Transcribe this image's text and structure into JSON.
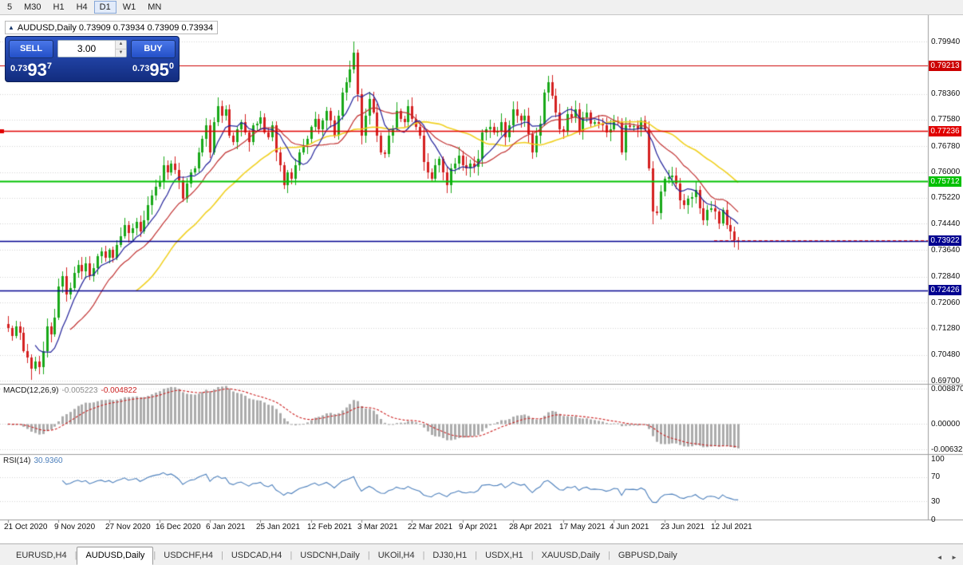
{
  "toolbar": {
    "timeframes": [
      "5",
      "M30",
      "H1",
      "H4",
      "D1",
      "W1",
      "MN"
    ],
    "active": "D1"
  },
  "chart_header": {
    "collapse_icon": "▲",
    "text": "AUDUSD,Daily 0.73909 0.73934 0.73909 0.73934"
  },
  "trade_panel": {
    "sell_label": "SELL",
    "buy_label": "BUY",
    "volume": "3.00",
    "spin_up_icon": "▲",
    "spin_down_icon": "▼",
    "sell_price": {
      "prefix": "0.73",
      "main": "93",
      "sup": "7"
    },
    "buy_price": {
      "prefix": "0.73",
      "main": "95",
      "sup": "0"
    }
  },
  "chart_data": {
    "type": "candlestick",
    "symbol": "AUDUSD",
    "timeframe": "Daily",
    "first_open": 0.714,
    "closes": [
      0.7128,
      0.7105,
      0.7133,
      0.7115,
      0.706,
      0.704,
      0.7005,
      0.7028,
      0.701,
      0.706,
      0.7135,
      0.711,
      0.716,
      0.7255,
      0.7285,
      0.723,
      0.725,
      0.7295,
      0.732,
      0.73,
      0.7325,
      0.7285,
      0.731,
      0.7345,
      0.736,
      0.734,
      0.7365,
      0.734,
      0.738,
      0.7405,
      0.744,
      0.7415,
      0.743,
      0.745,
      0.742,
      0.7455,
      0.75,
      0.753,
      0.7555,
      0.757,
      0.762,
      0.76,
      0.7625,
      0.7605,
      0.7575,
      0.752,
      0.7565,
      0.76,
      0.761,
      0.766,
      0.77,
      0.774,
      0.766,
      0.775,
      0.78,
      0.777,
      0.779,
      0.771,
      0.769,
      0.773,
      0.775,
      0.772,
      0.769,
      0.774,
      0.7745,
      0.7765,
      0.772,
      0.7705,
      0.774,
      0.766,
      0.762,
      0.756,
      0.76,
      0.758,
      0.762,
      0.766,
      0.768,
      0.77,
      0.7735,
      0.776,
      0.773,
      0.7755,
      0.7785,
      0.7755,
      0.771,
      0.777,
      0.784,
      0.787,
      0.791,
      0.796,
      0.7835,
      0.771,
      0.777,
      0.782,
      0.778,
      0.771,
      0.766,
      0.7655,
      0.771,
      0.773,
      0.7785,
      0.776,
      0.775,
      0.78,
      0.776,
      0.7735,
      0.771,
      0.763,
      0.76,
      0.758,
      0.762,
      0.764,
      0.76,
      0.756,
      0.761,
      0.7625,
      0.765,
      0.762,
      0.761,
      0.7625,
      0.7615,
      0.764,
      0.772,
      0.773,
      0.7735,
      0.772,
      0.7725,
      0.775,
      0.7705,
      0.774,
      0.779,
      0.777,
      0.7755,
      0.777,
      0.7715,
      0.766,
      0.771,
      0.7745,
      0.784,
      0.787,
      0.783,
      0.778,
      0.773,
      0.7725,
      0.7775,
      0.7765,
      0.779,
      0.7725,
      0.7765,
      0.778,
      0.7745,
      0.775,
      0.7745,
      0.774,
      0.772,
      0.773,
      0.7755,
      0.775,
      0.766,
      0.774,
      0.7735,
      0.7738,
      0.773,
      0.7755,
      0.773,
      0.761,
      0.748,
      0.7475,
      0.754,
      0.758,
      0.7585,
      0.759,
      0.7565,
      0.7515,
      0.75,
      0.752,
      0.7525,
      0.7545,
      0.749,
      0.7455,
      0.7485,
      0.749,
      0.748,
      0.7445,
      0.7485,
      0.744,
      0.742,
      0.7395,
      0.7393
    ],
    "wick_overrides": {
      "6": {
        "low": 0.6972
      },
      "8": {
        "low": 0.699
      },
      "89": {
        "high": 0.7995
      },
      "139": {
        "high": 0.7891
      },
      "166": {
        "low": 0.7443
      }
    },
    "horizontal_lines": [
      {
        "price": 0.79213,
        "label": "0.79213",
        "color": "#cc0000",
        "width": 1.2
      },
      {
        "price": 0.77236,
        "label": "0.77236",
        "color": "#e00000",
        "width": 1.6
      },
      {
        "price": 0.75712,
        "label": "0.75712",
        "color": "#00c000",
        "width": 1.8
      },
      {
        "price": 0.73922,
        "label": "0.73922",
        "color": "#000090",
        "width": 1.6
      },
      {
        "price": 0.72426,
        "label": "0.72426",
        "color": "#000090",
        "width": 1.6
      }
    ],
    "ask_price": 0.7395,
    "date_labels": [
      {
        "text": "21 Oct 2020",
        "bar": 0
      },
      {
        "text": "9 Nov 2020",
        "bar": 13
      },
      {
        "text": "27 Nov 2020",
        "bar": 26
      },
      {
        "text": "16 Dec 2020",
        "bar": 39
      },
      {
        "text": "6 Jan 2021",
        "bar": 52
      },
      {
        "text": "25 Jan 2021",
        "bar": 65
      },
      {
        "text": "12 Feb 2021",
        "bar": 78
      },
      {
        "text": "3 Mar 2021",
        "bar": 91
      },
      {
        "text": "22 Mar 2021",
        "bar": 104
      },
      {
        "text": "9 Apr 2021",
        "bar": 117
      },
      {
        "text": "28 Apr 2021",
        "bar": 130
      },
      {
        "text": "17 May 2021",
        "bar": 143
      },
      {
        "text": "4 Jun 2021",
        "bar": 156
      },
      {
        "text": "23 Jun 2021",
        "bar": 169
      },
      {
        "text": "12 Jul 2021",
        "bar": 182
      }
    ]
  },
  "price_axis": {
    "labels": [
      {
        "text": "0.79940",
        "value": 0.7994
      },
      {
        "text": "0.78360",
        "value": 0.7836
      },
      {
        "text": "0.77580",
        "value": 0.7758
      },
      {
        "text": "0.76780",
        "value": 0.7678
      },
      {
        "text": "0.76000",
        "value": 0.76
      },
      {
        "text": "0.75220",
        "value": 0.7522
      },
      {
        "text": "0.74440",
        "value": 0.7444
      },
      {
        "text": "0.73640",
        "value": 0.7364
      },
      {
        "text": "0.72840",
        "value": 0.7284
      },
      {
        "text": "0.72060",
        "value": 0.7206
      },
      {
        "text": "0.71280",
        "value": 0.7128
      },
      {
        "text": "0.70480",
        "value": 0.7048
      },
      {
        "text": "0.69700",
        "value": 0.697
      }
    ]
  },
  "indicators": {
    "macd": {
      "name": "MACD(12,26,9)",
      "main_value": "-0.005223",
      "signal_value": "-0.004822",
      "axis": [
        {
          "text": "0.008870",
          "value": 0.00887
        },
        {
          "text": "0.00000",
          "value": 0.0
        },
        {
          "text": "-0.00632",
          "value": -0.00632
        }
      ]
    },
    "rsi": {
      "name": "RSI(14)",
      "value": "30.9360",
      "axis": [
        {
          "text": "100",
          "value": 100,
          "line": false
        },
        {
          "text": "70",
          "value": 70,
          "line": true
        },
        {
          "text": "30",
          "value": 30,
          "line": true
        },
        {
          "text": "0",
          "value": 0,
          "line": false
        }
      ]
    }
  },
  "tabs": {
    "scroll_left_icon": "◄",
    "scroll_right_icon": "►",
    "items": [
      {
        "label": "EURUSD,H4",
        "active": false
      },
      {
        "label": "AUDUSD,Daily",
        "active": true
      },
      {
        "label": "USDCHF,H4",
        "active": false
      },
      {
        "label": "USDCAD,H4",
        "active": false
      },
      {
        "label": "USDCNH,Daily",
        "active": false
      },
      {
        "label": "UKOil,H4",
        "active": false
      },
      {
        "label": "DJ30,H1",
        "active": false
      },
      {
        "label": "USDX,H1",
        "active": false
      },
      {
        "label": "XAUUSD,Daily",
        "active": false
      },
      {
        "label": "GBPUSD,Daily",
        "active": false
      }
    ]
  },
  "colors": {
    "up": "#18a818",
    "down": "#d42020",
    "ma_fast": "#22229a",
    "ma_mid": "#c03030",
    "ma_slow": "#f0d020",
    "macd_hist": "#ababab",
    "macd_signal": "#cc2222",
    "rsi": "#4a7ebb",
    "grid": "#d2d2d2",
    "ask": "#e02020",
    "divider": "#9c9c9c"
  }
}
